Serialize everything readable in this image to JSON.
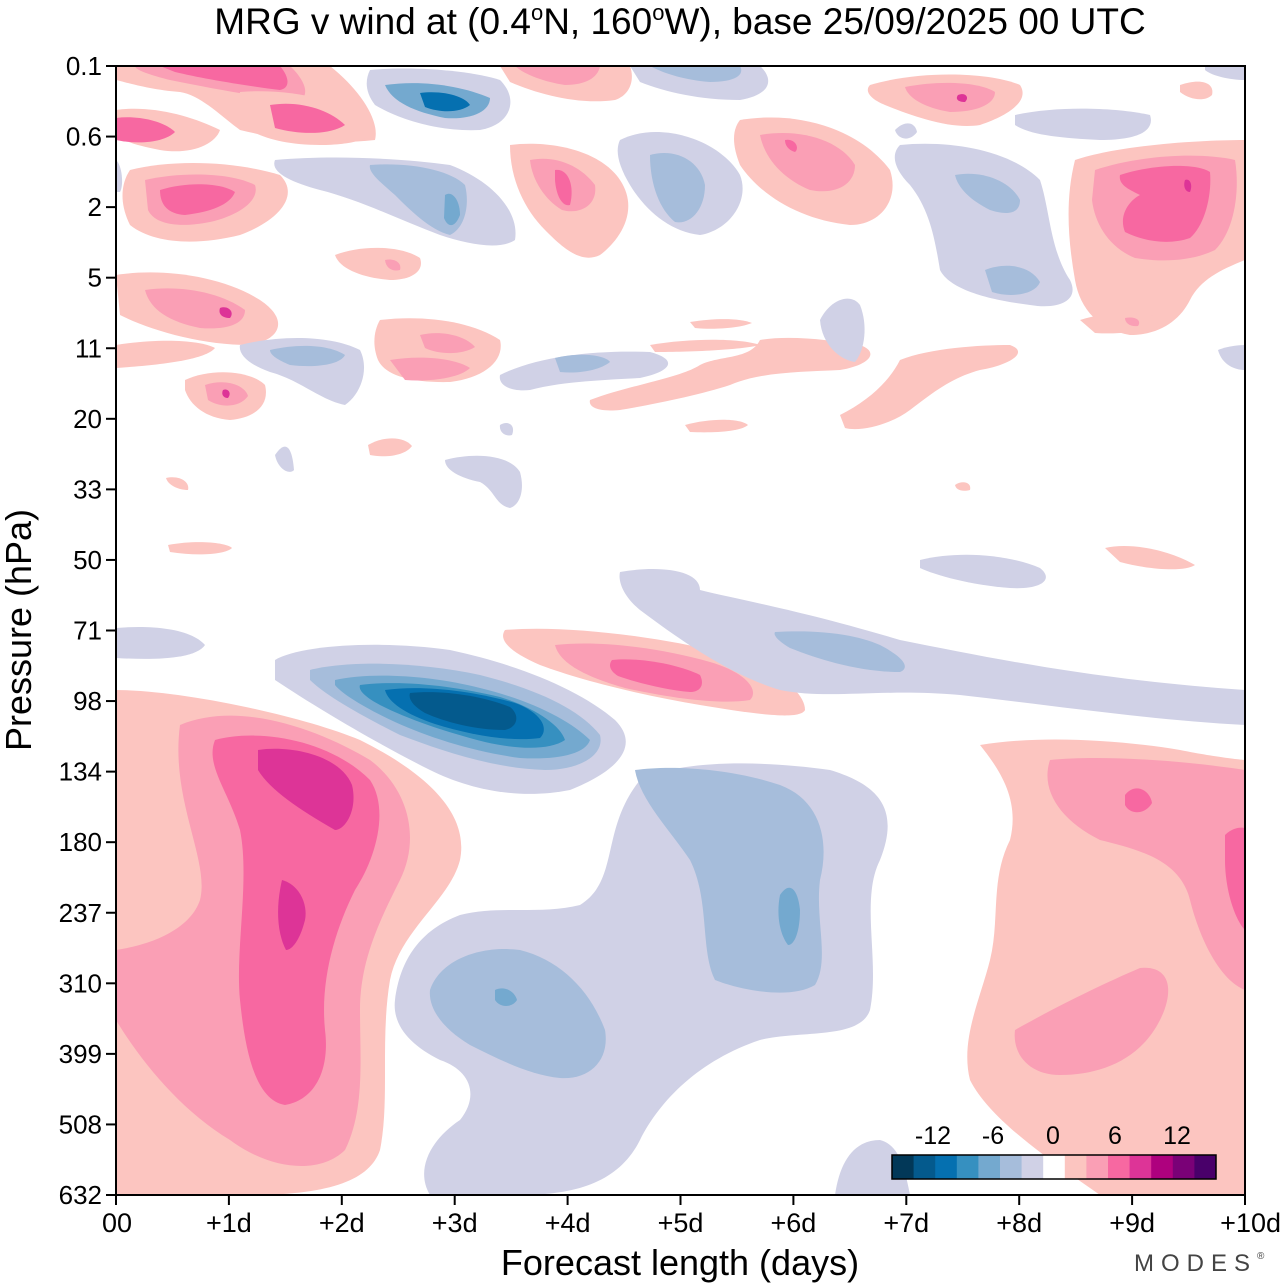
{
  "chart_data": {
    "type": "heatmap",
    "title": {
      "prefix": "MRG v wind at (0.4",
      "lat_suffix": "N, 160",
      "lon_suffix": "W),  base 25/09/2025  00 UTC",
      "degree_symbol": "o"
    },
    "xlabel": "Forecast length (days)",
    "ylabel": "Pressure (hPa)",
    "x_ticks": [
      "00",
      "+1d",
      "+2d",
      "+3d",
      "+4d",
      "+5d",
      "+6d",
      "+7d",
      "+8d",
      "+9d",
      "+10d"
    ],
    "x_range_days": [
      0,
      10
    ],
    "y_ticks": [
      "0.1",
      "0.6",
      "2",
      "5",
      "11",
      "20",
      "33",
      "50",
      "71",
      "98",
      "134",
      "180",
      "237",
      "310",
      "399",
      "508",
      "632"
    ],
    "y_axis_direction": "pressure decreasing upward",
    "colorbar": {
      "tick_labels": [
        "-12",
        "-6",
        "0",
        "6",
        "12"
      ],
      "colors": [
        "#023858",
        "#045a8d",
        "#0570b0",
        "#3690c0",
        "#74a9cf",
        "#a6bddb",
        "#d0d1e6",
        "#ffffff",
        "#fcc5c0",
        "#fa9fb5",
        "#f768a1",
        "#dd3497",
        "#ae017e",
        "#7a0177",
        "#49006a"
      ]
    },
    "features": [
      {
        "sign": "negative",
        "peak": "-12 or less",
        "day": 3.3,
        "pressure_hPa": 98
      },
      {
        "sign": "positive",
        "peak": "9 to 12",
        "day": 1.6,
        "pressure_hPa": 134
      },
      {
        "sign": "positive",
        "peak": "6 to 9",
        "day": 4.6,
        "pressure_hPa": 85
      },
      {
        "sign": "negative",
        "peak": "-4 to -6",
        "day": 3.5,
        "pressure_hPa": 310
      },
      {
        "sign": "negative",
        "peak": "-4 to -6",
        "day": 6.0,
        "pressure_hPa": 237
      },
      {
        "sign": "positive",
        "peak": "6 to 9",
        "day": 9.2,
        "pressure_hPa": 350
      },
      {
        "sign": "negative",
        "peak": "-8 to -10",
        "day": 3.0,
        "pressure_hPa": 0.3
      }
    ]
  },
  "branding": {
    "logo_text": "MODES",
    "logo_mark": "®"
  }
}
